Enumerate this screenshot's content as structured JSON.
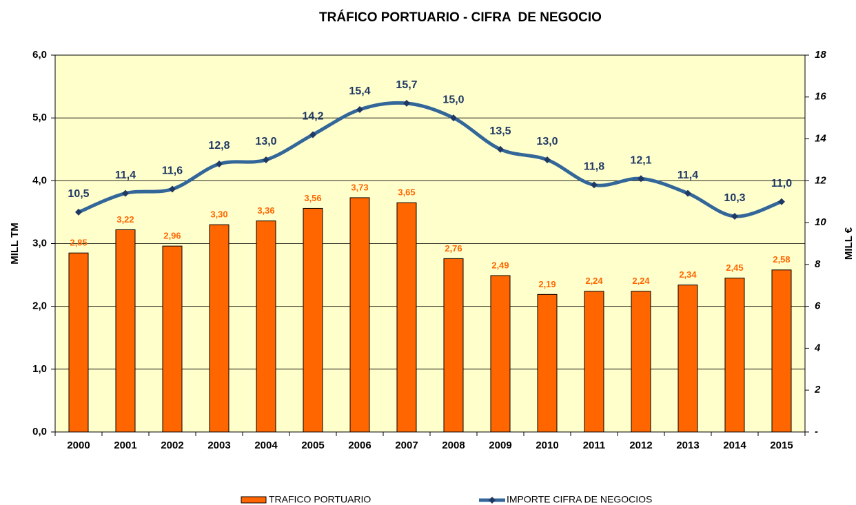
{
  "chart_data": {
    "type": "bar_line",
    "title": "TRÁFICO PORTUARIO - CIFRA  DE NEGOCIO",
    "ylabel": "MILL TM",
    "y2label": "MILL €",
    "categories": [
      "2000",
      "2001",
      "2002",
      "2003",
      "2004",
      "2005",
      "2006",
      "2007",
      "2008",
      "2009",
      "2010",
      "2011",
      "2012",
      "2013",
      "2014",
      "2015"
    ],
    "series": [
      {
        "name": "TRAFICO PORTUARIO",
        "type": "bar",
        "color": "#ff6600",
        "label_color": "#ff6600",
        "values": [
          2.85,
          3.22,
          2.96,
          3.3,
          3.36,
          3.56,
          3.73,
          3.65,
          2.76,
          2.49,
          2.19,
          2.24,
          2.24,
          2.34,
          2.45,
          2.58
        ],
        "value_labels": [
          "2,85",
          "3,22",
          "2,96",
          "3,30",
          "3,36",
          "3,56",
          "3,73",
          "3,65",
          "2,76",
          "2,49",
          "2,19",
          "2,24",
          "2,24",
          "2,34",
          "2,45",
          "2,58"
        ]
      },
      {
        "name": "IMPORTE CIFRA DE NEGOCIOS",
        "type": "line",
        "axis": "y2",
        "color": "#336699",
        "marker_color": "#1f3864",
        "label_color": "#1f3864",
        "values": [
          10.5,
          11.4,
          11.6,
          12.8,
          13.0,
          14.2,
          15.4,
          15.7,
          15.0,
          13.5,
          13.0,
          11.8,
          12.1,
          11.4,
          10.3,
          11.0
        ],
        "value_labels": [
          "10,5",
          "11,4",
          "11,6",
          "12,8",
          "13,0",
          "14,2",
          "15,4",
          "15,7",
          "15,0",
          "13,5",
          "13,0",
          "11,8",
          "12,1",
          "11,4",
          "10,3",
          "11,0"
        ]
      }
    ],
    "ylim": [
      0,
      6
    ],
    "yticks": [
      {
        "value": 0,
        "label": "0,0"
      },
      {
        "value": 1,
        "label": "1,0"
      },
      {
        "value": 2,
        "label": "2,0"
      },
      {
        "value": 3,
        "label": "3,0"
      },
      {
        "value": 4,
        "label": "4,0"
      },
      {
        "value": 5,
        "label": "5,0"
      },
      {
        "value": 6,
        "label": "6,0"
      }
    ],
    "y2lim": [
      0,
      18
    ],
    "y2ticks": [
      {
        "value": 0,
        "label": "-"
      },
      2,
      4,
      6,
      8,
      10,
      12,
      14,
      16,
      18
    ],
    "grid": true,
    "legend": "bottom",
    "background": "#ffffcc"
  }
}
